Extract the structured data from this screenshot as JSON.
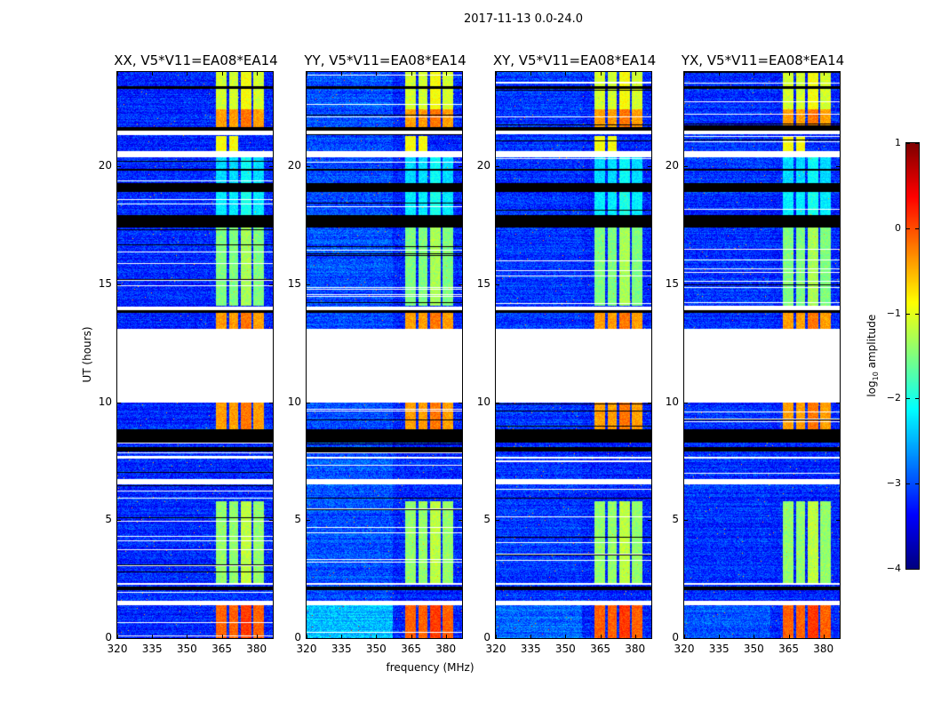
{
  "chart_data": {
    "type": "heatmap",
    "title": "2017-11-13 0.0-24.0",
    "xlabel": "frequency (MHz)",
    "ylabel": "UT (hours)",
    "xlim": [
      320,
      387
    ],
    "ylim": [
      0,
      24
    ],
    "xticks": [
      "320",
      "335",
      "350",
      "365",
      "380"
    ],
    "xtick_values": [
      320,
      335,
      350,
      365,
      380
    ],
    "yticks": [
      "0",
      "5",
      "10",
      "15",
      "20"
    ],
    "ytick_values": [
      0,
      5,
      10,
      15,
      20
    ],
    "panels": [
      {
        "title": "XX, V5*V11=EA08*EA14",
        "left_excess": 0.0
      },
      {
        "title": "YY, V5*V11=EA08*EA14",
        "left_excess": 0.35
      },
      {
        "title": "XY, V5*V11=EA08*EA14",
        "left_excess": 0.15
      },
      {
        "title": "YX, V5*V11=EA08*EA14",
        "left_excess": 0.1
      }
    ],
    "colorbar": {
      "label_main": "log",
      "label_sub": "10",
      "label_rest": " amplitude",
      "range": [
        -4,
        1
      ],
      "ticks": [
        "1",
        "0",
        "−1",
        "−2",
        "−3",
        "−4"
      ],
      "tick_values": [
        1,
        0,
        -1,
        -2,
        -3,
        -4
      ],
      "colormap": "jet"
    },
    "background_log_amplitude": -3.2,
    "rfi_channels_mhz": [
      [
        362.3,
        366.8
      ],
      [
        367.9,
        372.0
      ],
      [
        373.2,
        377.7
      ],
      [
        378.5,
        383.0
      ]
    ],
    "rfi_periods": [
      {
        "hours": [
          0.0,
          1.4
        ],
        "log_amplitude": -0.1
      },
      {
        "hours": [
          2.3,
          5.8
        ],
        "log_amplitude": -1.4
      },
      {
        "hours": [
          8.3,
          10.0
        ],
        "log_amplitude": -0.4
      },
      {
        "hours": [
          13.1,
          13.8
        ],
        "log_amplitude": -0.4
      },
      {
        "hours": [
          14.1,
          17.4
        ],
        "log_amplitude": -1.5
      },
      {
        "hours": [
          17.9,
          18.9
        ],
        "log_amplitude": -2.2
      },
      {
        "hours": [
          19.3,
          20.4
        ],
        "log_amplitude": -2.3
      },
      {
        "hours": [
          20.6,
          21.3
        ],
        "log_amplitude": -0.9,
        "channels": 2
      },
      {
        "hours": [
          21.6,
          22.4
        ],
        "log_amplitude": -0.4
      },
      {
        "hours": [
          22.4,
          24.0
        ],
        "log_amplitude": -1.1
      }
    ],
    "flagged_white_hours": [
      [
        10.0,
        13.1
      ],
      [
        20.4,
        20.65
      ],
      [
        6.5,
        6.75
      ],
      [
        1.4,
        1.58
      ],
      [
        13.9,
        14.05
      ],
      [
        21.35,
        21.5
      ],
      [
        7.6,
        7.7
      ],
      [
        2.25,
        2.35
      ]
    ],
    "flagged_black_hours": [
      [
        8.3,
        8.85
      ],
      [
        17.4,
        17.95
      ],
      [
        18.9,
        19.3
      ],
      [
        21.5,
        21.65
      ],
      [
        2.05,
        2.2
      ],
      [
        7.9,
        8.1
      ],
      [
        13.8,
        13.9
      ],
      [
        23.3,
        23.38
      ],
      [
        19.8,
        19.88
      ]
    ]
  }
}
